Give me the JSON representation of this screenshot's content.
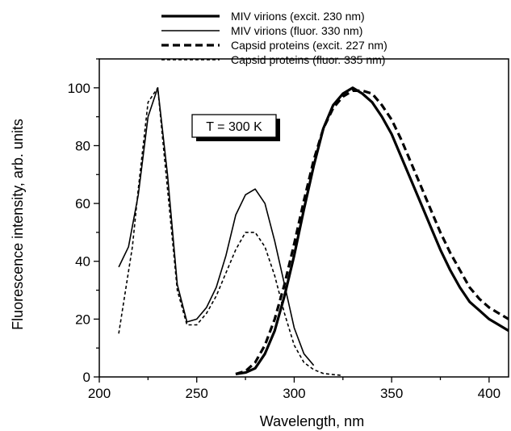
{
  "chart_data": {
    "type": "line",
    "title": "",
    "xlabel": "Wavelength, nm",
    "ylabel": "Fluorescence intensity, arb. units",
    "xlim": [
      200,
      410
    ],
    "ylim": [
      0,
      110
    ],
    "x_ticks": [
      200,
      250,
      300,
      350,
      400
    ],
    "y_ticks": [
      0,
      20,
      40,
      60,
      80,
      100
    ],
    "grid": false,
    "legend_position": "top-center",
    "annotation": "T = 300 K",
    "series": [
      {
        "name": "MIV virions (excit. 230 nm)",
        "style": "solid-thick",
        "x": [
          270,
          275,
          280,
          285,
          290,
          295,
          300,
          305,
          310,
          315,
          320,
          325,
          330,
          335,
          340,
          345,
          350,
          355,
          360,
          365,
          370,
          375,
          380,
          385,
          390,
          395,
          400,
          405,
          410
        ],
        "y": [
          1,
          1.5,
          3,
          8,
          16,
          28,
          42,
          58,
          73,
          86,
          94,
          98,
          100,
          98,
          95,
          90,
          84,
          76,
          68,
          60,
          52,
          44,
          37,
          31,
          26,
          23,
          20,
          18,
          16
        ]
      },
      {
        "name": "MIV virions (fluor. 330 nm)",
        "style": "solid-thin",
        "x": [
          210,
          215,
          220,
          225,
          230,
          235,
          240,
          245,
          250,
          255,
          260,
          265,
          270,
          275,
          280,
          285,
          290,
          295,
          300,
          305,
          310
        ],
        "y": [
          38,
          45,
          63,
          90,
          100,
          70,
          32,
          19,
          20,
          24,
          31,
          42,
          56,
          63,
          65,
          60,
          47,
          32,
          17,
          8,
          4
        ]
      },
      {
        "name": "Capsid proteins (excit. 227 nm)",
        "style": "dashed-thick",
        "x": [
          270,
          275,
          280,
          285,
          290,
          295,
          300,
          305,
          310,
          315,
          320,
          325,
          330,
          335,
          340,
          345,
          350,
          355,
          360,
          365,
          370,
          375,
          380,
          385,
          390,
          395,
          400,
          405,
          410
        ],
        "y": [
          1,
          2,
          5,
          11,
          20,
          32,
          46,
          61,
          75,
          86,
          93,
          97,
          99,
          99,
          98,
          94,
          89,
          82,
          74,
          66,
          58,
          50,
          43,
          37,
          31,
          27,
          24,
          22,
          20
        ]
      },
      {
        "name": "Capsid proteins (fluor. 335 nm)",
        "style": "dashed-thin",
        "x": [
          210,
          213,
          217,
          220,
          225,
          230,
          235,
          240,
          245,
          250,
          255,
          260,
          265,
          270,
          275,
          280,
          285,
          290,
          295,
          300,
          305,
          310,
          315,
          320,
          325
        ],
        "y": [
          15,
          28,
          45,
          65,
          95,
          100,
          65,
          30,
          18,
          18,
          22,
          28,
          36,
          44,
          50,
          50,
          45,
          35,
          22,
          11,
          5,
          2.5,
          1.2,
          0.8,
          0.5
        ]
      }
    ]
  }
}
